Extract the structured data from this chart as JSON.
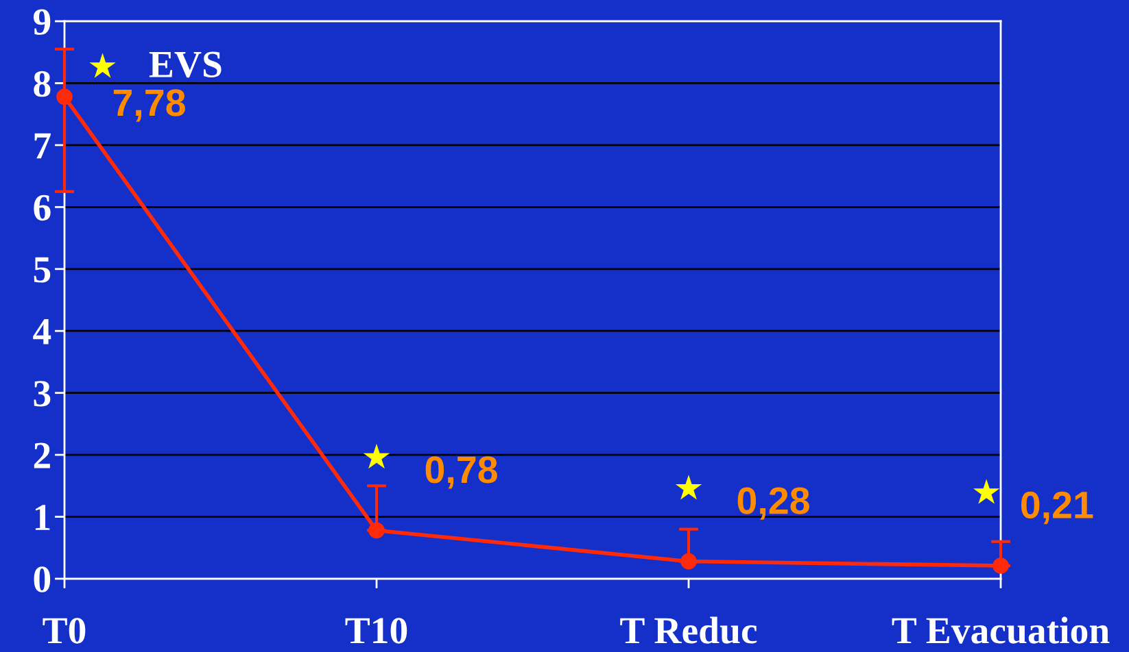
{
  "chart_data": {
    "type": "line",
    "title": "EVS",
    "categories": [
      "T0",
      "T10",
      "T Reduc",
      "T Evacuation"
    ],
    "series": [
      {
        "color": "#ff2a0a",
        "values": [
          7.78,
          0.78,
          0.28,
          0.21
        ],
        "errors": [
          [
            6.25,
            8.55
          ],
          [
            0.78,
            1.5
          ],
          [
            0.28,
            0.8
          ],
          [
            0.21,
            0.6
          ]
        ],
        "value_labels": [
          "7,78",
          "0,78",
          "0,28",
          "0,21"
        ]
      }
    ],
    "marker": "circle",
    "ylim": [
      0,
      9
    ],
    "yticks": [
      0,
      1,
      2,
      3,
      4,
      5,
      6,
      7,
      8,
      9
    ],
    "grid": "y",
    "annotations": [
      "★",
      "★",
      "★",
      "★"
    ]
  }
}
